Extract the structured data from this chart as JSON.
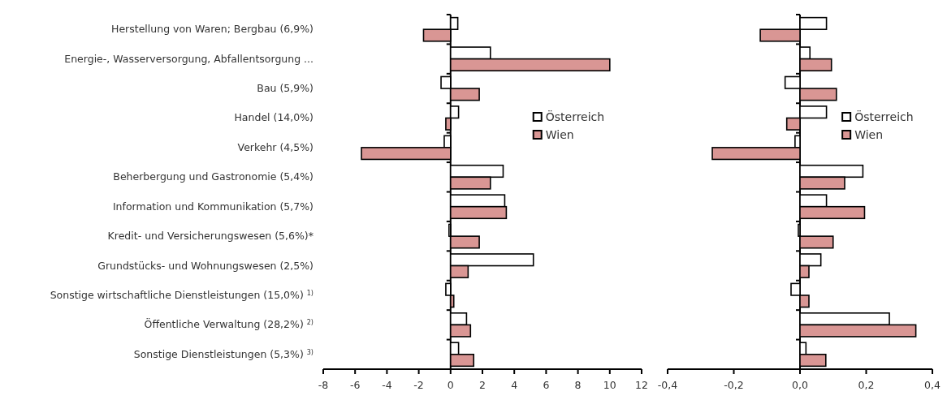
{
  "chart_data": [
    {
      "type": "bar",
      "orientation": "horizontal",
      "categories": [
        "Herstellung von Waren; Bergbau (6,9%)",
        "Energie-, Wasserversorgung, Abfallentsorgung ...",
        "Bau (5,9%)",
        "Handel (14,0%)",
        "Verkehr (4,5%)",
        "Beherbergung und Gastronomie (5,4%)",
        "Information und Kommunikation (5,7%)",
        "Kredit- und Versicherungswesen (5,6%)*",
        "Grundstücks- und Wohnungswesen (2,5%)",
        "Sonstige wirtschaftliche Dienstleistungen (15,0%) $^{1)}$",
        "Öffentliche Verwaltung (28,2%) $^{2)}$",
        "Sonstige Dienstleistungen (5,3%) $^{3)}$"
      ],
      "series": [
        {
          "name": "Österreich",
          "color": "#ffffff",
          "values": [
            0.45,
            2.5,
            -0.6,
            0.5,
            -0.4,
            3.3,
            3.4,
            -0.1,
            5.2,
            -0.3,
            1.0,
            0.5
          ]
        },
        {
          "name": "Wien",
          "color": "#d99694",
          "values": [
            -1.7,
            10.0,
            1.8,
            -0.3,
            -5.6,
            2.5,
            3.5,
            1.8,
            1.1,
            0.2,
            1.25,
            1.45
          ]
        }
      ],
      "xlim": [
        -8,
        12
      ],
      "xticks": [
        -8,
        -6,
        -4,
        -2,
        0,
        2,
        4,
        6,
        8,
        10,
        12
      ],
      "legend": "right"
    },
    {
      "type": "bar",
      "orientation": "horizontal",
      "categories": [
        null,
        null,
        null,
        null,
        null,
        null,
        null,
        null,
        null,
        null,
        null,
        null
      ],
      "series": [
        {
          "name": "Österreich",
          "color": "#ffffff",
          "values": [
            0.08,
            0.03,
            -0.045,
            0.08,
            -0.015,
            0.19,
            0.08,
            -0.005,
            0.063,
            -0.027,
            0.27,
            0.018
          ]
        },
        {
          "name": "Wien",
          "color": "#d99694",
          "values": [
            -0.12,
            0.095,
            0.11,
            -0.04,
            -0.265,
            0.135,
            0.195,
            0.1,
            0.027,
            0.027,
            0.35,
            0.078
          ]
        }
      ],
      "xlim": [
        -0.4,
        0.4
      ],
      "xticks": [
        {
          "value": -0.4,
          "label": "-0,4"
        },
        {
          "value": -0.2,
          "label": "-0,2"
        },
        {
          "value": 0,
          "label": "0,0"
        },
        {
          "value": 0.2,
          "label": "0,2"
        },
        {
          "value": 0.4,
          "label": "0,4"
        }
      ],
      "legend": "right",
      "tick_labels": "x"
    }
  ]
}
